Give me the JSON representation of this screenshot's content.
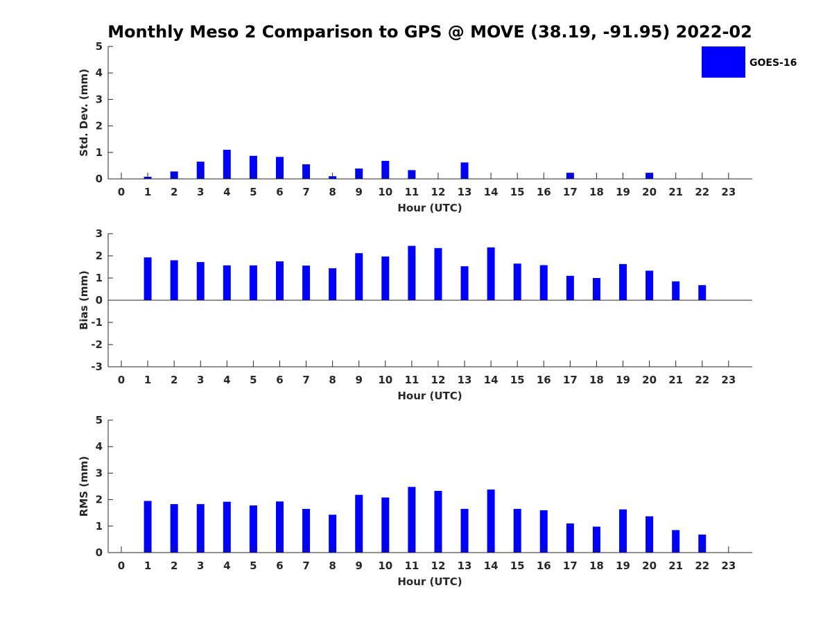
{
  "title": "Monthly Meso 2 Comparison to GPS @ MOVE (38.19, -91.95) 2022-02",
  "legend": {
    "label": "GOES-16",
    "color": "#0000ff",
    "placement": "top-right"
  },
  "chart_data": [
    {
      "type": "bar",
      "xlabel": "Hour (UTC)",
      "ylabel": "Std. Dev. (mm)",
      "ylim": [
        0,
        5
      ],
      "yticks": [
        0,
        1,
        2,
        3,
        4,
        5
      ],
      "categories": [
        "0",
        "1",
        "2",
        "3",
        "4",
        "5",
        "6",
        "7",
        "8",
        "9",
        "10",
        "11",
        "12",
        "13",
        "14",
        "15",
        "16",
        "17",
        "18",
        "19",
        "20",
        "21",
        "22",
        "23"
      ],
      "series": [
        {
          "name": "GOES-16",
          "color": "#0000ff",
          "values": [
            null,
            0.08,
            0.28,
            0.65,
            1.1,
            0.87,
            0.83,
            0.55,
            0.1,
            0.39,
            0.68,
            0.33,
            null,
            0.62,
            null,
            null,
            null,
            0.23,
            null,
            null,
            0.23,
            null,
            null,
            null
          ]
        }
      ]
    },
    {
      "type": "bar",
      "xlabel": "Hour (UTC)",
      "ylabel": "Bias (mm)",
      "ylim": [
        -3,
        3
      ],
      "yticks": [
        -3,
        -2,
        -1,
        0,
        1,
        2,
        3
      ],
      "categories": [
        "0",
        "1",
        "2",
        "3",
        "4",
        "5",
        "6",
        "7",
        "8",
        "9",
        "10",
        "11",
        "12",
        "13",
        "14",
        "15",
        "16",
        "17",
        "18",
        "19",
        "20",
        "21",
        "22",
        "23"
      ],
      "series": [
        {
          "name": "GOES-16",
          "color": "#0000ff",
          "values": [
            null,
            1.93,
            1.8,
            1.72,
            1.57,
            1.57,
            1.75,
            1.56,
            1.44,
            2.12,
            1.97,
            2.45,
            2.35,
            1.53,
            2.38,
            1.65,
            1.58,
            1.1,
            1.0,
            1.63,
            1.33,
            0.85,
            0.68,
            null
          ]
        }
      ]
    },
    {
      "type": "bar",
      "xlabel": "Hour (UTC)",
      "ylabel": "RMS (mm)",
      "ylim": [
        0,
        5
      ],
      "yticks": [
        0,
        1,
        2,
        3,
        4,
        5
      ],
      "categories": [
        "0",
        "1",
        "2",
        "3",
        "4",
        "5",
        "6",
        "7",
        "8",
        "9",
        "10",
        "11",
        "12",
        "13",
        "14",
        "15",
        "16",
        "17",
        "18",
        "19",
        "20",
        "21",
        "22",
        "23"
      ],
      "series": [
        {
          "name": "GOES-16",
          "color": "#0000ff",
          "values": [
            null,
            1.95,
            1.83,
            1.83,
            1.92,
            1.78,
            1.93,
            1.65,
            1.43,
            2.18,
            2.08,
            2.48,
            2.33,
            1.65,
            2.38,
            1.65,
            1.6,
            1.1,
            0.98,
            1.63,
            1.37,
            0.85,
            0.68,
            null
          ]
        }
      ]
    }
  ]
}
